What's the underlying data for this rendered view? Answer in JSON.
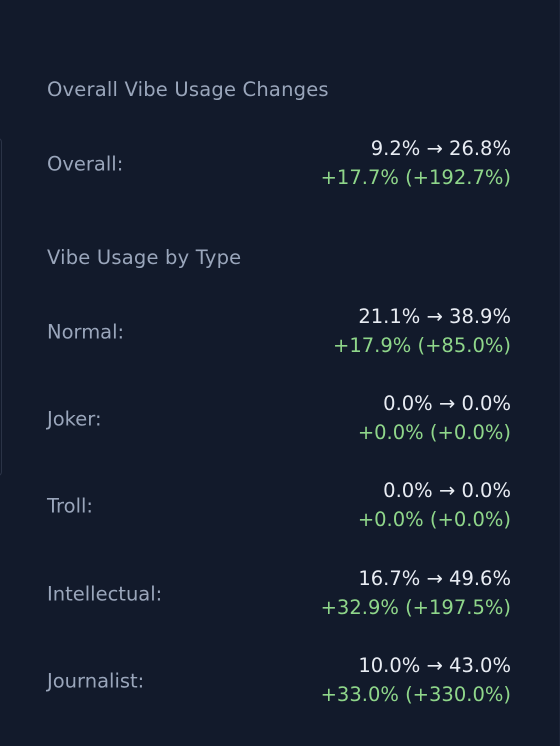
{
  "overall_section": {
    "title": "Overall Vibe Usage Changes",
    "rows": [
      {
        "label": "Overall:",
        "range": "9.2% → 26.8%",
        "delta": "+17.7% (+192.7%)"
      }
    ]
  },
  "type_section": {
    "title": "Vibe Usage by Type",
    "rows": [
      {
        "label": "Normal:",
        "range": "21.1% → 38.9%",
        "delta": "+17.9% (+85.0%)"
      },
      {
        "label": "Joker:",
        "range": "0.0% → 0.0%",
        "delta": "+0.0% (+0.0%)"
      },
      {
        "label": "Troll:",
        "range": "0.0% → 0.0%",
        "delta": "+0.0% (+0.0%)"
      },
      {
        "label": "Intellectual:",
        "range": "16.7% → 49.6%",
        "delta": "+32.9% (+197.5%)"
      },
      {
        "label": "Journalist:",
        "range": "10.0% → 43.0%",
        "delta": "+33.0% (+330.0%)"
      }
    ]
  },
  "colors": {
    "background": "#121a2b",
    "label": "#9aa6bb",
    "value": "#e8ecf3",
    "positive_delta": "#8fd68a"
  }
}
